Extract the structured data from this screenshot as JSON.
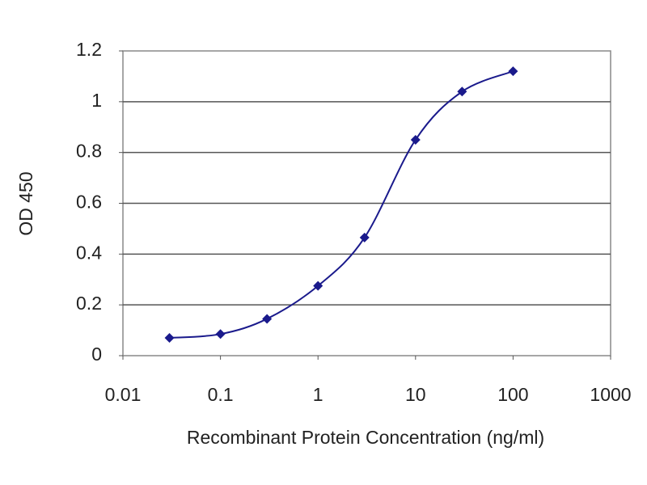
{
  "chart_data": {
    "type": "line",
    "xlabel": "Recombinant Protein Concentration (ng/ml)",
    "ylabel": "OD 450",
    "xscale": "log",
    "grid": true,
    "x": [
      0.03,
      0.1,
      0.3,
      1,
      3,
      10,
      30,
      100
    ],
    "series": [
      {
        "color": "#1a1a8c",
        "values": [
          0.07,
          0.085,
          0.145,
          0.275,
          0.465,
          0.85,
          1.04,
          1.12
        ]
      }
    ],
    "xlim": [
      0.01,
      1000
    ],
    "xticks": [
      0.01,
      0.1,
      1,
      10,
      100,
      1000
    ],
    "ylim": [
      0,
      1.2
    ],
    "yticks": [
      0,
      0.2,
      0.4,
      0.6,
      0.8,
      1,
      1.2
    ]
  }
}
